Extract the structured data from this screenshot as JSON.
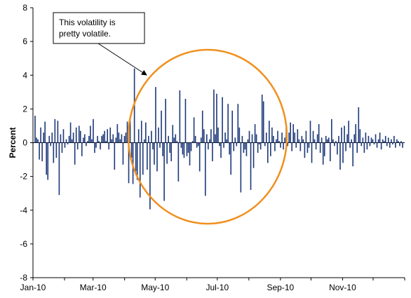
{
  "chart_data": {
    "type": "bar",
    "ylabel": "Percent",
    "ylim": [
      -8,
      8
    ],
    "yticks": [
      8,
      6,
      4,
      2,
      0,
      -2,
      -4,
      -6,
      -8
    ],
    "xlabels": [
      "Jan-10",
      "Mar-10",
      "May-10",
      "Jul-10",
      "Sep-10",
      "Nov-10"
    ],
    "xrange": [
      "2010-01-01",
      "2010-12-31"
    ],
    "bar_color": "#1f3a7a",
    "grid": false,
    "annotation": {
      "lines": [
        "This volatility is",
        "pretty volatile."
      ],
      "circle_color": "#f0901e"
    },
    "values": [
      1.6,
      0.3,
      0.2,
      -1.0,
      0.9,
      -1.1,
      0.6,
      1.25,
      -1.9,
      -2.2,
      0.4,
      -0.2,
      0.6,
      -1.2,
      1.4,
      -0.9,
      1.3,
      -3.1,
      0.5,
      -0.6,
      0.8,
      -0.3,
      0.2,
      -0.1,
      0.4,
      1.2,
      0.2,
      0.6,
      -1.3,
      0.9,
      -0.4,
      1.0,
      0.7,
      -0.8,
      0.3,
      0.5,
      -0.2,
      0.1,
      0.4,
      1.0,
      0.2,
      1.4,
      -0.6,
      -0.3,
      0.4,
      0.1,
      -0.4,
      0.4,
      0.5,
      0.7,
      0.1,
      0.8,
      -0.4,
      0.9,
      0.2,
      0.5,
      -1.6,
      0.3,
      1.1,
      0.6,
      0.2,
      0.5,
      -1.3,
      0.4,
      0.6,
      1.25,
      -2.4,
      1.3,
      -0.9,
      -2.45,
      4.4,
      -1.7,
      -2.2,
      0.8,
      -3.25,
      1.3,
      -1.9,
      0.2,
      1.2,
      -1.6,
      0.4,
      -3.95,
      0.7,
      -0.4,
      -1.3,
      3.3,
      -1.7,
      0.9,
      -0.3,
      1.9,
      -0.8,
      -3.45,
      2.6,
      -1.25,
      0.4,
      -0.6,
      -1.1,
      1.05,
      0.3,
      0.5,
      0.1,
      -2.3,
      3.1,
      -0.3,
      -0.7,
      -0.9,
      2.6,
      -0.8,
      -0.6,
      -1.35,
      -0.5,
      0.1,
      1.5,
      0.4,
      -0.3,
      -0.2,
      -1.7,
      0.3,
      1.9,
      0.8,
      -3.15,
      0.5,
      -0.4,
      0.2,
      0.8,
      -1.1,
      3.15,
      0.5,
      2.9,
      0.9,
      -0.2,
      -0.9,
      2.7,
      -0.3,
      0.6,
      0.2,
      2.3,
      -0.7,
      -1.9,
      1.9,
      -0.5,
      0.3,
      -0.2,
      2.3,
      0.9,
      -2.95,
      0.4,
      -0.6,
      -0.4,
      -0.8,
      0.2,
      0.7,
      -2.8,
      0.5,
      -1.5,
      1.1,
      0.5,
      -0.6,
      -0.1,
      -0.4,
      2.85,
      2.45,
      -0.2,
      0.6,
      -1.2,
      1.3,
      -0.8,
      0.9,
      0.4,
      -0.5,
      0.2,
      0.7,
      0.1,
      -0.3,
      0.6,
      -0.4,
      0.3,
      0.9,
      -0.2,
      0.6,
      1.2,
      -0.5,
      1.1,
      0.6,
      -0.3,
      0.8,
      0.2,
      -0.5,
      0.4,
      0.2,
      -0.9,
      0.7,
      -0.6,
      -0.3,
      1.3,
      -1.2,
      0.7,
      0.2,
      -0.4,
      0.5,
      1.1,
      -0.6,
      0.3,
      -1.3,
      -0.8,
      0.4,
      0.2,
      0.3,
      -1.1,
      1.4,
      0.2,
      -0.2,
      0.1,
      -0.7,
      0.4,
      -1.6,
      0.9,
      -1.2,
      1.0,
      -0.5,
      0.5,
      1.3,
      -0.3,
      0.2,
      -1.4,
      0.5,
      1.1,
      -0.6,
      2.1,
      0.8,
      -0.2,
      0.3,
      -0.6,
      0.6,
      -0.4,
      0.4,
      -0.2,
      0.3,
      0.2,
      -0.1,
      0.5,
      -0.3,
      0.2,
      0.6,
      -0.4,
      0.2,
      0.1,
      0.4,
      -0.2,
      0.3,
      -0.3,
      0.2,
      -0.1,
      0.4,
      -0.3,
      0.2,
      0.1,
      -0.2,
      0.1,
      -0.3
    ]
  }
}
